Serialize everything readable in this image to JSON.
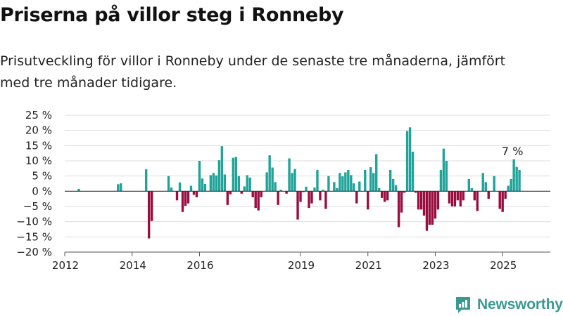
{
  "title": "Priserna på villor steg i Ronneby",
  "subtitle": "Prisutveckling för villor i Ronneby under de senaste tre månaderna, jämfört med tre månader tidigare.",
  "brand": {
    "name": "Newsworthy",
    "icon": "newsworthy-logo-icon",
    "color": "#3a9a92"
  },
  "chart_data": {
    "type": "bar",
    "title": "",
    "xlabel": "",
    "ylabel": "",
    "unit": "%",
    "ylim": [
      -20,
      25
    ],
    "yticks": [
      {
        "value": 25,
        "label": "25 %"
      },
      {
        "value": 20,
        "label": "20 %"
      },
      {
        "value": 15,
        "label": "15 %"
      },
      {
        "value": 10,
        "label": "10 %"
      },
      {
        "value": 5,
        "label": "5 %"
      },
      {
        "value": 0,
        "label": "0 %"
      },
      {
        "value": -5,
        "label": "−5 %"
      },
      {
        "value": -10,
        "label": "−10 %"
      },
      {
        "value": -15,
        "label": "−15 %"
      },
      {
        "value": -20,
        "label": "−20 %"
      }
    ],
    "xlim": [
      "2012-01",
      "2026-06"
    ],
    "xticks": [
      {
        "value": "2012-01",
        "label": "2012"
      },
      {
        "value": "2014-01",
        "label": "2014"
      },
      {
        "value": "2016-01",
        "label": "2016"
      },
      {
        "value": "2019-01",
        "label": "2019"
      },
      {
        "value": "2021-01",
        "label": "2021"
      },
      {
        "value": "2023-01",
        "label": "2023"
      },
      {
        "value": "2025-01",
        "label": "2025"
      }
    ],
    "grid": true,
    "colors": {
      "positive": "#1fa39a",
      "negative": "#9a0d3f",
      "grid": "#dddddd",
      "zero_line": "#333333",
      "axis": "#555555"
    },
    "annotation": {
      "date": "2025-04",
      "text": "7 %"
    },
    "series": [
      {
        "values": [
          [
            "2012-06",
            0.8
          ],
          [
            "2013-08",
            2.3
          ],
          [
            "2013-09",
            2.6
          ],
          [
            "2014-06",
            7.2
          ],
          [
            "2014-07",
            -15.5
          ],
          [
            "2014-08",
            -9.8
          ],
          [
            "2015-02",
            5.0
          ],
          [
            "2015-03",
            1.2
          ],
          [
            "2015-05",
            -3.0
          ],
          [
            "2015-06",
            2.9
          ],
          [
            "2015-07",
            -6.8
          ],
          [
            "2015-08",
            -4.8
          ],
          [
            "2015-09",
            -4.0
          ],
          [
            "2015-10",
            1.8
          ],
          [
            "2015-11",
            -1.2
          ],
          [
            "2015-12",
            -2.0
          ],
          [
            "2016-01",
            10.0
          ],
          [
            "2016-02",
            4.2
          ],
          [
            "2016-03",
            2.4
          ],
          [
            "2016-05",
            5.3
          ],
          [
            "2016-06",
            6.0
          ],
          [
            "2016-07",
            5.2
          ],
          [
            "2016-08",
            10.2
          ],
          [
            "2016-09",
            14.8
          ],
          [
            "2016-10",
            5.5
          ],
          [
            "2016-11",
            -4.5
          ],
          [
            "2016-12",
            -1.0
          ],
          [
            "2017-01",
            11.0
          ],
          [
            "2017-02",
            11.3
          ],
          [
            "2017-03",
            5.0
          ],
          [
            "2017-04",
            -0.8
          ],
          [
            "2017-05",
            1.6
          ],
          [
            "2017-06",
            5.3
          ],
          [
            "2017-07",
            4.5
          ],
          [
            "2017-08",
            -2.0
          ],
          [
            "2017-09",
            -5.5
          ],
          [
            "2017-10",
            -6.3
          ],
          [
            "2017-11",
            -2.0
          ],
          [
            "2018-01",
            6.2
          ],
          [
            "2018-02",
            11.8
          ],
          [
            "2018-03",
            7.8
          ],
          [
            "2018-04",
            3.0
          ],
          [
            "2018-05",
            -4.5
          ],
          [
            "2018-06",
            0.5
          ],
          [
            "2018-08",
            -0.8
          ],
          [
            "2018-09",
            10.8
          ],
          [
            "2018-10",
            6.0
          ],
          [
            "2018-11",
            7.3
          ],
          [
            "2018-12",
            -9.3
          ],
          [
            "2019-01",
            -3.5
          ],
          [
            "2019-02",
            -0.3
          ],
          [
            "2019-03",
            1.5
          ],
          [
            "2019-04",
            -5.5
          ],
          [
            "2019-05",
            -4.0
          ],
          [
            "2019-06",
            1.2
          ],
          [
            "2019-07",
            7.0
          ],
          [
            "2019-08",
            -3.0
          ],
          [
            "2019-09",
            0.5
          ],
          [
            "2019-10",
            -5.8
          ],
          [
            "2019-11",
            5.0
          ],
          [
            "2020-01",
            3.0
          ],
          [
            "2020-02",
            1.0
          ],
          [
            "2020-03",
            6.0
          ],
          [
            "2020-04",
            4.9
          ],
          [
            "2020-05",
            6.2
          ],
          [
            "2020-06",
            7.0
          ],
          [
            "2020-07",
            5.3
          ],
          [
            "2020-08",
            2.6
          ],
          [
            "2020-09",
            -4.0
          ],
          [
            "2020-10",
            3.2
          ],
          [
            "2020-12",
            7.0
          ],
          [
            "2021-01",
            -6.0
          ],
          [
            "2021-02",
            7.9
          ],
          [
            "2021-03",
            6.0
          ],
          [
            "2021-04",
            12.2
          ],
          [
            "2021-05",
            1.0
          ],
          [
            "2021-06",
            -2.2
          ],
          [
            "2021-07",
            -3.5
          ],
          [
            "2021-08",
            -3.0
          ],
          [
            "2021-09",
            7.0
          ],
          [
            "2021-10",
            4.0
          ],
          [
            "2021-11",
            2.0
          ],
          [
            "2021-12",
            -11.8
          ],
          [
            "2022-01",
            -7.0
          ],
          [
            "2022-02",
            -0.5
          ],
          [
            "2022-03",
            19.8
          ],
          [
            "2022-04",
            21.0
          ],
          [
            "2022-05",
            13.0
          ],
          [
            "2022-06",
            -0.5
          ],
          [
            "2022-07",
            -6.0
          ],
          [
            "2022-08",
            -6.0
          ],
          [
            "2022-09",
            -8.0
          ],
          [
            "2022-10",
            -13.0
          ],
          [
            "2022-11",
            -11.0
          ],
          [
            "2022-12",
            -11.0
          ],
          [
            "2023-01",
            -9.0
          ],
          [
            "2023-02",
            -6.0
          ],
          [
            "2023-03",
            7.0
          ],
          [
            "2023-04",
            14.0
          ],
          [
            "2023-05",
            10.0
          ],
          [
            "2023-06",
            -4.0
          ],
          [
            "2023-07",
            -5.0
          ],
          [
            "2023-08",
            -5.0
          ],
          [
            "2023-09",
            -3.0
          ],
          [
            "2023-10",
            -5.0
          ],
          [
            "2023-11",
            -3.0
          ],
          [
            "2024-01",
            4.0
          ],
          [
            "2024-02",
            1.0
          ],
          [
            "2024-03",
            -3.0
          ],
          [
            "2024-04",
            -6.5
          ],
          [
            "2024-06",
            6.0
          ],
          [
            "2024-07",
            3.0
          ],
          [
            "2024-08",
            -2.5
          ],
          [
            "2024-10",
            5.0
          ],
          [
            "2024-12",
            -5.8
          ],
          [
            "2025-01",
            -6.8
          ],
          [
            "2025-02",
            -2.5
          ],
          [
            "2025-03",
            1.8
          ],
          [
            "2025-04",
            4.0
          ],
          [
            "2025-05",
            10.5
          ],
          [
            "2025-06",
            8.0
          ],
          [
            "2025-07",
            7.0
          ]
        ]
      }
    ]
  }
}
